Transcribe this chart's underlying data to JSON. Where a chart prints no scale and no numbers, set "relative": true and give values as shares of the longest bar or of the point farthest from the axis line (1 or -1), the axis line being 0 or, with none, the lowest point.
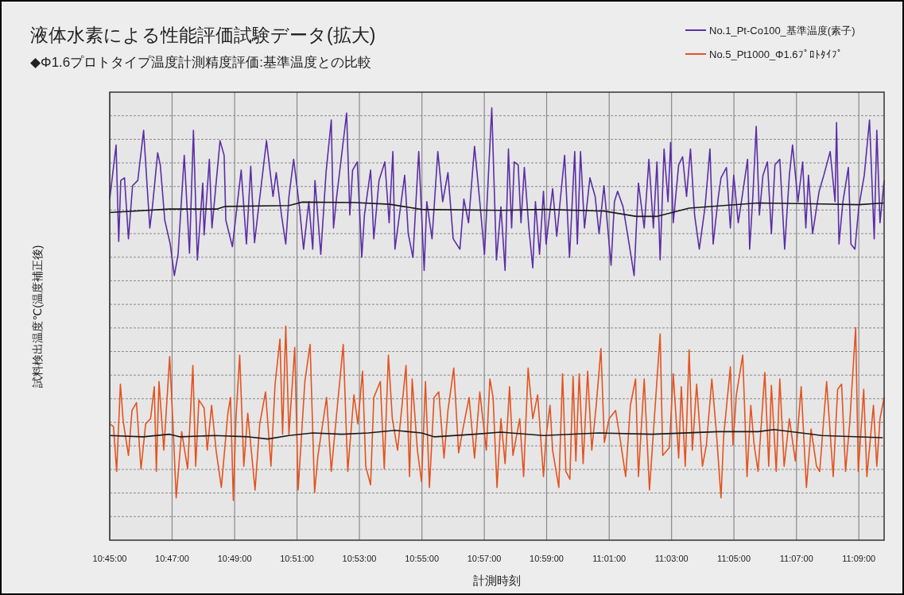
{
  "chart_data": {
    "type": "line",
    "relative": true,
    "title": "液体水素による性能評価試験データ(拡大)",
    "subtitle": "◆Φ1.6プロトタイプ温度計測精度評価:基準温度との比較",
    "xlabel": "計測時刻",
    "ylabel": "試料検出温度℃(温度補正後)",
    "legend": "top right",
    "grid": true,
    "xlim": [
      10.75,
      11.1635
    ],
    "xticks": [
      {
        "value": 10.75,
        "label": "10:45:00"
      },
      {
        "value": 10.7833,
        "label": "10:47:00"
      },
      {
        "value": 10.8167,
        "label": "10:49:00"
      },
      {
        "value": 10.85,
        "label": "10:51:00"
      },
      {
        "value": 10.8833,
        "label": "10:53:00"
      },
      {
        "value": 10.9167,
        "label": "10:55:00"
      },
      {
        "value": 10.95,
        "label": "10:57:00"
      },
      {
        "value": 10.9833,
        "label": "10:59:00"
      },
      {
        "value": 11.0167,
        "label": "11:01:00"
      },
      {
        "value": 11.05,
        "label": "11:03:00"
      },
      {
        "value": 11.0833,
        "label": "11:05:00"
      },
      {
        "value": 11.1167,
        "label": "11:07:00"
      },
      {
        "value": 11.15,
        "label": "11:09:00"
      }
    ],
    "series": [
      {
        "name": "No.1_Pt-Co100_基準温度(素子)",
        "color": "#5b2ea6",
        "x": [
          10.75,
          10.7534,
          10.7548,
          10.7559,
          10.7579,
          10.76,
          10.7622,
          10.765,
          10.7681,
          10.7714,
          10.7728,
          10.7756,
          10.777,
          10.7794,
          10.7823,
          10.7845,
          10.7865,
          10.7898,
          10.7926,
          10.7947,
          10.7968,
          10.7997,
          10.8004,
          10.8032,
          10.8046,
          10.8089,
          10.8111,
          10.812,
          10.8155,
          10.8202,
          10.823,
          10.8253,
          10.8273,
          10.8337,
          10.8372,
          10.8389,
          10.8417,
          10.844,
          10.8457,
          10.8482,
          10.8513,
          10.8535,
          10.8563,
          10.8584,
          10.8596,
          10.8627,
          10.8655,
          10.8683,
          10.8695,
          10.8712,
          10.8765,
          10.8782,
          10.8797,
          10.8822,
          10.8846,
          10.886,
          10.8893,
          10.891,
          10.8938,
          10.8969,
          10.8992,
          10.9012,
          10.9023,
          10.9075,
          10.9094,
          10.9119,
          10.915,
          10.9179,
          10.9193,
          10.9221,
          10.9252,
          10.9278,
          10.9306,
          10.9334,
          10.937,
          10.9391,
          10.9416,
          10.9448,
          10.9476,
          10.9501,
          10.954,
          10.9565,
          10.9589,
          10.9611,
          10.9629,
          10.9646,
          10.966,
          10.9681,
          10.9696,
          10.9714,
          10.9738,
          10.9759,
          10.9773,
          10.9795,
          10.9816,
          10.983,
          10.9865,
          10.9887,
          10.9929,
          10.9955,
          10.9983,
          10.9997,
          11.0014,
          11.0035,
          11.0064,
          11.0092,
          11.0113,
          11.0139,
          11.0177,
          11.0195,
          11.0212,
          11.0241,
          11.0269,
          11.03,
          11.0323,
          11.0354,
          11.0379,
          11.0403,
          11.0422,
          11.0439,
          11.046,
          11.0481,
          11.0495,
          11.0509,
          11.0538,
          11.0559,
          11.058,
          11.0601,
          11.0623,
          11.0648,
          11.0679,
          11.0705,
          11.0722,
          11.075,
          11.0764,
          11.0793,
          11.0814,
          11.0832,
          11.0856,
          11.0877,
          11.0906,
          11.0917,
          11.0934,
          11.0952,
          11.0969,
          11.0988,
          11.1012,
          11.1033,
          11.1052,
          11.1078,
          11.1104,
          11.1129,
          11.1146,
          11.1175,
          11.12,
          11.1217,
          11.1231,
          11.1253,
          11.1288,
          11.1313,
          11.1347,
          11.1373,
          11.1381,
          11.1394,
          11.1415,
          11.1444,
          11.1458,
          11.1479,
          11.15,
          11.1529,
          11.1557,
          11.1582,
          11.1596,
          11.1613,
          11.1635
        ],
        "values": [
          0.789,
          0.914,
          0.691,
          0.832,
          0.838,
          0.697,
          0.82,
          0.832,
          0.948,
          0.722,
          0.771,
          0.896,
          0.868,
          0.74,
          0.685,
          0.612,
          0.661,
          0.89,
          0.664,
          0.948,
          0.648,
          0.826,
          0.706,
          0.881,
          0.722,
          0.924,
          0.89,
          0.74,
          0.679,
          0.856,
          0.685,
          0.865,
          0.688,
          0.924,
          0.795,
          0.85,
          0.752,
          0.685,
          0.795,
          0.881,
          0.771,
          0.673,
          0.783,
          0.673,
          0.832,
          0.661,
          0.85,
          0.972,
          0.722,
          0.795,
          0.988,
          0.752,
          0.856,
          0.875,
          0.654,
          0.752,
          0.856,
          0.697,
          0.832,
          0.875,
          0.734,
          0.899,
          0.673,
          0.844,
          0.709,
          0.654,
          0.899,
          0.624,
          0.783,
          0.697,
          0.899,
          0.783,
          0.85,
          0.697,
          0.673,
          0.789,
          0.734,
          0.911,
          0.783,
          0.661,
          1.0,
          0.648,
          0.771,
          0.624,
          0.905,
          0.722,
          0.875,
          0.868,
          0.734,
          0.862,
          0.722,
          0.63,
          0.783,
          0.661,
          0.807,
          0.685,
          0.813,
          0.703,
          0.89,
          0.654,
          0.899,
          0.685,
          0.899,
          0.722,
          0.838,
          0.795,
          0.709,
          0.82,
          0.636,
          0.783,
          0.807,
          0.771,
          0.697,
          0.612,
          0.826,
          0.722,
          0.881,
          0.722,
          0.875,
          0.648,
          0.905,
          0.783,
          0.92,
          0.734,
          0.868,
          0.887,
          0.795,
          0.905,
          0.752,
          0.673,
          0.771,
          0.905,
          0.685,
          0.795,
          0.838,
          0.862,
          0.722,
          0.844,
          0.734,
          0.795,
          0.881,
          0.673,
          0.795,
          0.957,
          0.752,
          0.844,
          0.875,
          0.709,
          0.868,
          0.881,
          0.673,
          0.844,
          0.914,
          0.783,
          0.875,
          0.722,
          0.844,
          0.709,
          0.807,
          0.844,
          0.899,
          0.783,
          0.966,
          0.685,
          0.783,
          0.862,
          0.685,
          0.673,
          0.771,
          0.844,
          0.972,
          0.697,
          0.948,
          0.734,
          0.832
        ]
      },
      {
        "name": "No.5_Pt1000_Φ1.6ﾌﾟﾛﾄﾀｲﾌﾟ",
        "color": "#e4531f",
        "x": [
          10.75,
          10.752,
          10.7537,
          10.7557,
          10.7572,
          10.76,
          10.7619,
          10.7643,
          10.7667,
          10.7692,
          10.7718,
          10.7738,
          10.7749,
          10.7763,
          10.7789,
          10.782,
          10.7837,
          10.7855,
          10.7884,
          10.7916,
          10.7944,
          10.7959,
          10.7976,
          10.8004,
          10.8021,
          10.8044,
          10.8068,
          10.8096,
          10.8131,
          10.8145,
          10.816,
          10.8174,
          10.8194,
          10.8216,
          10.8237,
          10.8276,
          10.8301,
          10.8332,
          10.8361,
          10.8383,
          10.8409,
          10.8423,
          10.844,
          10.8457,
          10.8488,
          10.8506,
          10.8542,
          10.857,
          10.8594,
          10.8612,
          10.8658,
          10.8683,
          10.8712,
          10.8747,
          10.8771,
          10.8804,
          10.8825,
          10.885,
          10.8867,
          10.8893,
          10.891,
          10.8945,
          10.8966,
          10.8988,
          10.9009,
          10.9037,
          10.9082,
          10.9101,
          10.9115,
          10.9143,
          10.9165,
          10.9186,
          10.9207,
          10.9232,
          10.9257,
          10.9285,
          10.9306,
          10.9337,
          10.9363,
          10.9391,
          10.9419,
          10.9448,
          10.9476,
          10.9511,
          10.953,
          10.9547,
          10.9568,
          10.9589,
          10.9611,
          10.9635,
          10.9653,
          10.9689,
          10.971,
          10.9734,
          10.9759,
          10.9785,
          10.9816,
          10.983,
          10.9851,
          10.9865,
          10.9898,
          10.9918,
          10.9936,
          10.9957,
          10.9974,
          10.9989,
          11.0007,
          11.0028,
          11.0052,
          11.0074,
          11.0099,
          11.0123,
          11.0141,
          11.0167,
          11.0201,
          11.0226,
          11.0255,
          11.028,
          11.0308,
          11.0323,
          11.0354,
          11.0382,
          11.041,
          11.0439,
          11.0453,
          11.0488,
          11.0509,
          11.0538,
          11.0552,
          11.0573,
          11.0594,
          11.0611,
          11.0634,
          11.0665,
          11.0686,
          11.0715,
          11.0739,
          11.0764,
          11.0778,
          11.0814,
          11.0828,
          11.0846,
          11.088,
          11.0903,
          11.0923,
          11.0941,
          11.0962,
          11.0998,
          11.1019,
          11.1033,
          11.1059,
          11.1078,
          11.1101,
          11.1129,
          11.1161,
          11.1192,
          11.122,
          11.1245,
          11.1274,
          11.1291,
          11.1328,
          11.1363,
          11.1387,
          11.1408,
          11.1429,
          11.1451,
          11.1483,
          11.1497,
          11.1526,
          11.1543,
          11.1578,
          11.1596,
          11.1613,
          11.1635
        ],
        "values": [
          0.269,
          0.263,
          0.159,
          0.361,
          0.275,
          0.196,
          0.3,
          0.318,
          0.165,
          0.269,
          0.281,
          0.355,
          0.159,
          0.367,
          0.208,
          0.425,
          0.275,
          0.098,
          0.251,
          0.165,
          0.404,
          0.171,
          0.324,
          0.306,
          0.208,
          0.312,
          0.208,
          0.122,
          0.294,
          0.33,
          0.092,
          0.281,
          0.428,
          0.171,
          0.294,
          0.116,
          0.269,
          0.343,
          0.171,
          0.361,
          0.465,
          0.245,
          0.495,
          0.245,
          0.446,
          0.116,
          0.367,
          0.453,
          0.11,
          0.196,
          0.33,
          0.159,
          0.294,
          0.453,
          0.159,
          0.336,
          0.269,
          0.391,
          0.171,
          0.128,
          0.33,
          0.367,
          0.165,
          0.428,
          0.281,
          0.208,
          0.404,
          0.147,
          0.373,
          0.208,
          0.135,
          0.367,
          0.122,
          0.33,
          0.343,
          0.19,
          0.3,
          0.398,
          0.202,
          0.269,
          0.33,
          0.19,
          0.343,
          0.208,
          0.373,
          0.33,
          0.122,
          0.281,
          0.177,
          0.355,
          0.196,
          0.281,
          0.147,
          0.398,
          0.281,
          0.336,
          0.147,
          0.239,
          0.312,
          0.208,
          0.122,
          0.385,
          0.159,
          0.141,
          0.379,
          0.183,
          0.385,
          0.177,
          0.391,
          0.208,
          0.318,
          0.443,
          0.226,
          0.281,
          0.3,
          0.232,
          0.147,
          0.312,
          0.373,
          0.147,
          0.373,
          0.116,
          0.294,
          0.477,
          0.196,
          0.214,
          0.385,
          0.19,
          0.355,
          0.171,
          0.44,
          0.208,
          0.361,
          0.171,
          0.22,
          0.373,
          0.251,
          0.098,
          0.239,
          0.401,
          0.22,
          0.336,
          0.428,
          0.147,
          0.312,
          0.22,
          0.159,
          0.388,
          0.171,
          0.358,
          0.159,
          0.373,
          0.171,
          0.281,
          0.183,
          0.355,
          0.122,
          0.257,
          0.171,
          0.159,
          0.367,
          0.147,
          0.349,
          0.361,
          0.159,
          0.269,
          0.492,
          0.159,
          0.349,
          0.147,
          0.312,
          0.171,
          0.281,
          0.33
        ]
      },
      {
        "color": "#1a1a1a",
        "x": [
          10.75,
          10.782,
          10.8075,
          10.8117,
          10.8457,
          10.8528,
          10.8811,
          10.8995,
          10.9165,
          10.9589,
          10.983,
          11.0141,
          11.0311,
          11.0425,
          11.0594,
          11.0962,
          11.1245,
          11.15,
          11.1635
        ],
        "values": [
          0.758,
          0.766,
          0.766,
          0.772,
          0.774,
          0.782,
          0.781,
          0.777,
          0.765,
          0.763,
          0.765,
          0.761,
          0.749,
          0.749,
          0.768,
          0.78,
          0.778,
          0.776,
          0.78
        ]
      },
      {
        "color": "#1a1a1a",
        "x": [
          10.75,
          10.7678,
          10.782,
          10.7877,
          10.806,
          10.8244,
          10.8344,
          10.8457,
          10.8584,
          10.874,
          10.8881,
          10.9023,
          10.9165,
          10.9235,
          10.9448,
          10.9589,
          10.9816,
          11.0113,
          11.0396,
          11.075,
          11.0962,
          11.1047,
          11.1302,
          11.1628
        ],
        "values": [
          0.242,
          0.239,
          0.245,
          0.239,
          0.242,
          0.239,
          0.234,
          0.242,
          0.248,
          0.245,
          0.248,
          0.254,
          0.248,
          0.239,
          0.245,
          0.25,
          0.242,
          0.248,
          0.245,
          0.251,
          0.251,
          0.256,
          0.242,
          0.237
        ]
      }
    ]
  }
}
